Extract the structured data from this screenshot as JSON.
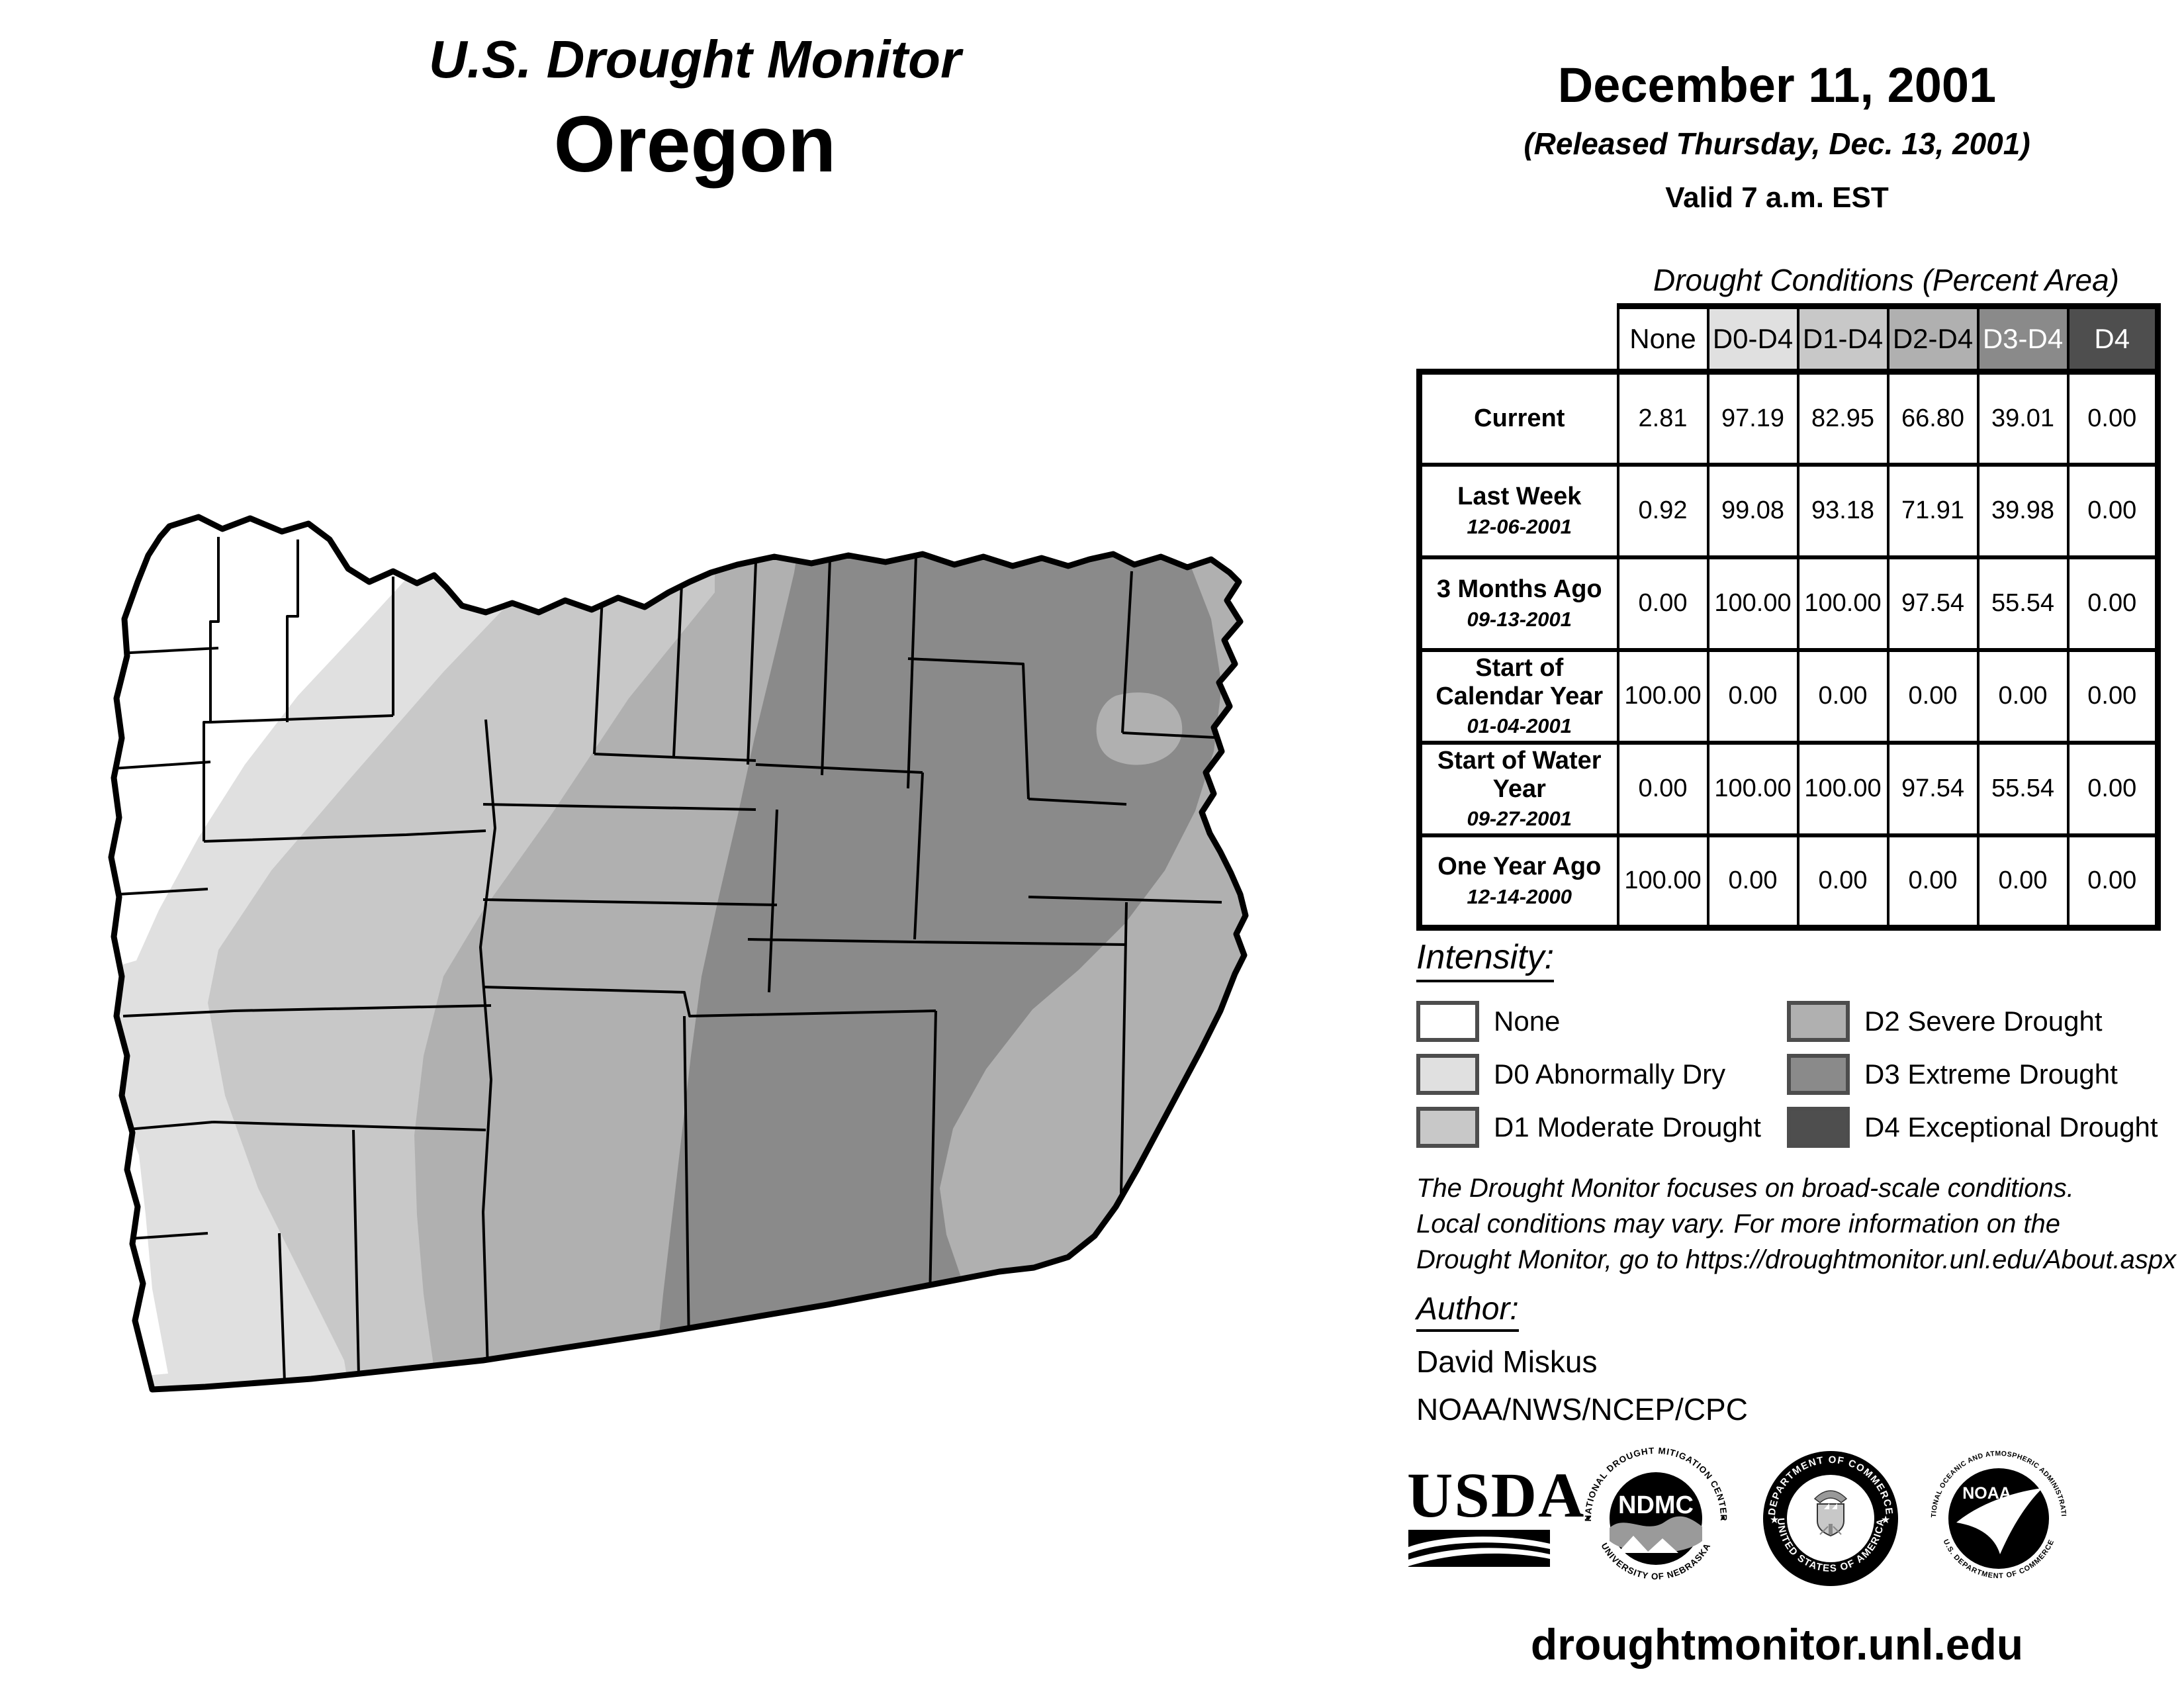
{
  "header": {
    "title": "U.S. Drought Monitor",
    "state": "Oregon"
  },
  "date_block": {
    "date": "December 11, 2001",
    "released": "(Released Thursday, Dec. 13, 2001)",
    "valid": "Valid 7 a.m. EST"
  },
  "table": {
    "caption": "Drought Conditions (Percent Area)",
    "columns": [
      "None",
      "D0-D4",
      "D1-D4",
      "D2-D4",
      "D3-D4",
      "D4"
    ],
    "header_colors": [
      "#ffffff",
      "#e0e0e0",
      "#c8c8c8",
      "#b0b0b0",
      "#8a8a8a",
      "#4e4e4e"
    ],
    "header_text_colors": [
      "#000000",
      "#000000",
      "#000000",
      "#000000",
      "#ffffff",
      "#ffffff"
    ],
    "rows": [
      {
        "label": "Current",
        "date": "",
        "values": [
          "2.81",
          "97.19",
          "82.95",
          "66.80",
          "39.01",
          "0.00"
        ]
      },
      {
        "label": "Last Week",
        "date": "12-06-2001",
        "values": [
          "0.92",
          "99.08",
          "93.18",
          "71.91",
          "39.98",
          "0.00"
        ]
      },
      {
        "label": "3 Months Ago",
        "date": "09-13-2001",
        "values": [
          "0.00",
          "100.00",
          "100.00",
          "97.54",
          "55.54",
          "0.00"
        ]
      },
      {
        "label": "Start of Calendar Year",
        "date": "01-04-2001",
        "values": [
          "100.00",
          "0.00",
          "0.00",
          "0.00",
          "0.00",
          "0.00"
        ]
      },
      {
        "label": "Start of Water Year",
        "date": "09-27-2001",
        "values": [
          "0.00",
          "100.00",
          "100.00",
          "97.54",
          "55.54",
          "0.00"
        ]
      },
      {
        "label": "One Year Ago",
        "date": "12-14-2000",
        "values": [
          "100.00",
          "0.00",
          "0.00",
          "0.00",
          "0.00",
          "0.00"
        ]
      }
    ]
  },
  "legend": {
    "title": "Intensity:",
    "items": [
      {
        "label": "None",
        "color": "#ffffff"
      },
      {
        "label": "D0 Abnormally Dry",
        "color": "#e0e0e0"
      },
      {
        "label": "D1 Moderate Drought",
        "color": "#c8c8c8"
      },
      {
        "label": "D2 Severe Drought",
        "color": "#b0b0b0"
      },
      {
        "label": "D3 Extreme Drought",
        "color": "#8a8a8a"
      },
      {
        "label": "D4 Exceptional Drought",
        "color": "#4e4e4e"
      }
    ]
  },
  "disclaimer": {
    "line1": "The Drought Monitor focuses on broad-scale conditions.",
    "line2": "Local conditions may vary. For more information on the",
    "line3": "Drought Monitor, go to https://droughtmonitor.unl.edu/About.aspx"
  },
  "author": {
    "title": "Author:",
    "name": "David Miskus",
    "org": "NOAA/NWS/NCEP/CPC"
  },
  "logos": {
    "usda": {
      "text": "USDA"
    },
    "ndmc": {
      "center": "NDMC",
      "top": "NATIONAL DROUGHT MITIGATION CENTER",
      "bottom": "UNIVERSITY OF NEBRASKA"
    },
    "doc": {
      "top": "DEPARTMENT OF COMMERCE",
      "bottom": "UNITED STATES OF AMERICA"
    },
    "noaa": {
      "center": "NOAA",
      "top": "NATIONAL OCEANIC AND ATMOSPHERIC ADMINISTRATION",
      "bottom": "U.S. DEPARTMENT OF COMMERCE"
    }
  },
  "footer": {
    "url": "droughtmonitor.unl.edu"
  },
  "map": {
    "colors": {
      "none": "#ffffff",
      "d0": "#e0e0e0",
      "d1": "#c8c8c8",
      "d2": "#b0b0b0",
      "d3": "#8a8a8a",
      "d4": "#4e4e4e",
      "outline": "#000000"
    }
  },
  "chart_data": {
    "type": "table",
    "title": "Drought Conditions (Percent Area)",
    "columns": [
      "None",
      "D0-D4",
      "D1-D4",
      "D2-D4",
      "D3-D4",
      "D4"
    ],
    "rows": [
      {
        "label": "Current",
        "values": [
          2.81,
          97.19,
          82.95,
          66.8,
          39.01,
          0.0
        ]
      },
      {
        "label": "Last Week 12-06-2001",
        "values": [
          0.92,
          99.08,
          93.18,
          71.91,
          39.98,
          0.0
        ]
      },
      {
        "label": "3 Months Ago 09-13-2001",
        "values": [
          0.0,
          100.0,
          100.0,
          97.54,
          55.54,
          0.0
        ]
      },
      {
        "label": "Start of Calendar Year 01-04-2001",
        "values": [
          100.0,
          0.0,
          0.0,
          0.0,
          0.0,
          0.0
        ]
      },
      {
        "label": "Start of Water Year 09-27-2001",
        "values": [
          0.0,
          100.0,
          100.0,
          97.54,
          55.54,
          0.0
        ]
      },
      {
        "label": "One Year Ago 12-14-2000",
        "values": [
          100.0,
          0.0,
          0.0,
          0.0,
          0.0,
          0.0
        ]
      }
    ]
  }
}
